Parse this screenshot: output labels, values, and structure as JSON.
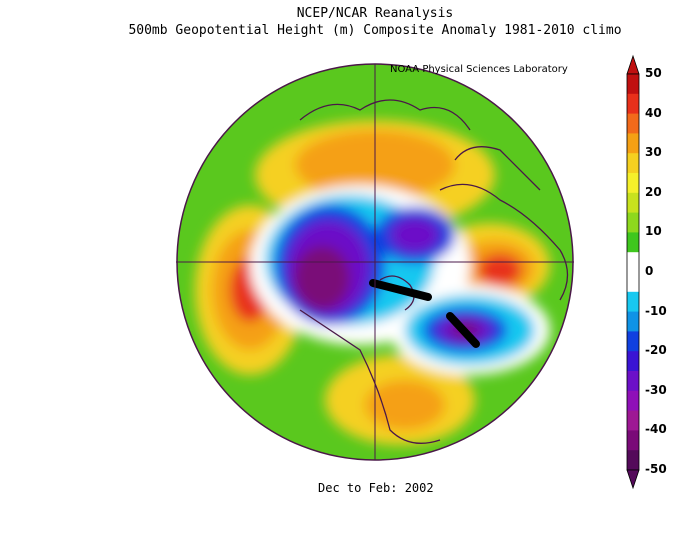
{
  "header": {
    "line1": "NCEP/NCAR Reanalysis",
    "line2": "500mb Geopotential Height (m) Composite Anomaly 1981-2010 climo",
    "credit": "NOAA Physical Sciences Laboratory"
  },
  "footer": {
    "period": "Dec to Feb: 2002"
  },
  "colorbar": {
    "labels": [
      "50",
      "40",
      "30",
      "20",
      "10",
      "0",
      "-10",
      "-20",
      "-30",
      "-40",
      "-50"
    ],
    "colors": [
      "#c01010",
      "#e8301a",
      "#f26a1a",
      "#f5a014",
      "#f5d020",
      "#f5f02a",
      "#c8e21e",
      "#8ed81e",
      "#3fc71e",
      "#ffffff",
      "#ffffff",
      "#18c8f0",
      "#0f93e6",
      "#1040e0",
      "#3a14d4",
      "#6c10c8",
      "#8f10b8",
      "#9e1894",
      "#7a0a78",
      "#540a5a"
    ],
    "color_stops_note": ""
  },
  "colors": {
    "frame": "#4a1848",
    "positive_strong": "#d71f14",
    "positive": "#f5a014",
    "neutral_pos": "#5ac81e",
    "negative": "#1040e0",
    "negative_strong": "#5a0a5e"
  }
}
